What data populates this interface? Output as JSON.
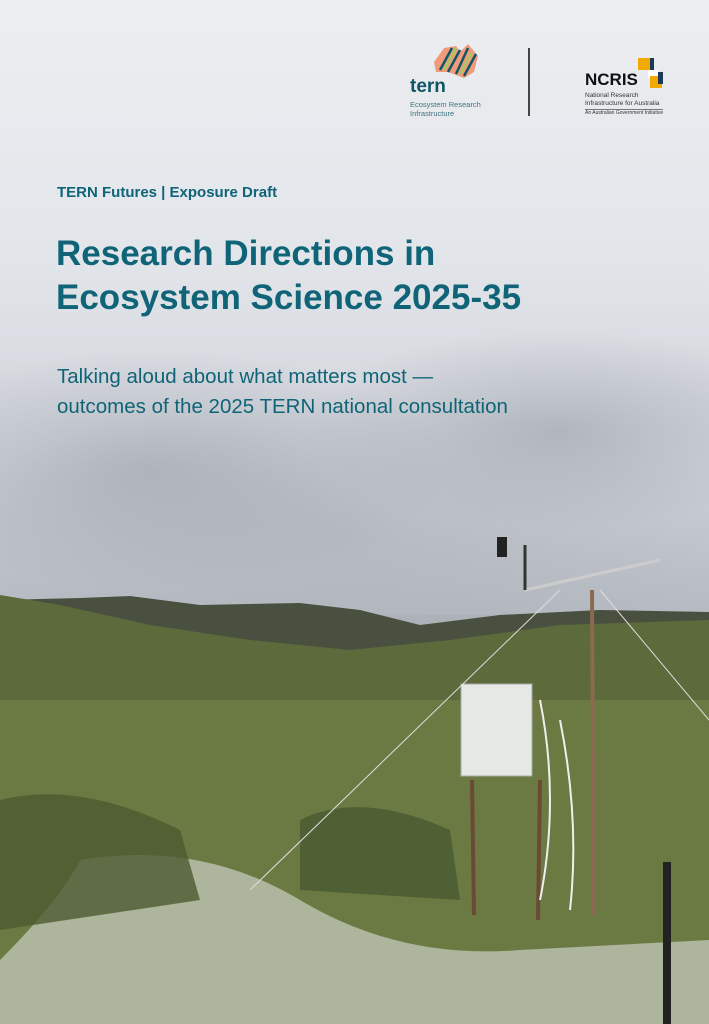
{
  "logos": {
    "tern": {
      "wordmark": "tern",
      "subtitle": "Ecosystem Research Infrastructure"
    },
    "ncris": {
      "wordmark": "NCRIS",
      "subtitle": "National Research Infrastructure for Australia",
      "tagline": "An Australian Government Initiative"
    }
  },
  "cover": {
    "kicker": "TERN Futures | Exposure Draft",
    "title_line1": "Research Directions in",
    "title_line2": "Ecosystem Science 2025-35",
    "subtitle_line1": "Talking aloud about what matters most —",
    "subtitle_line2": "outcomes of the 2025 TERN national consultation"
  },
  "colors": {
    "accent": "#0f6478",
    "ncris_orange": "#f2a900",
    "ncris_navy": "#1b3a5c"
  }
}
